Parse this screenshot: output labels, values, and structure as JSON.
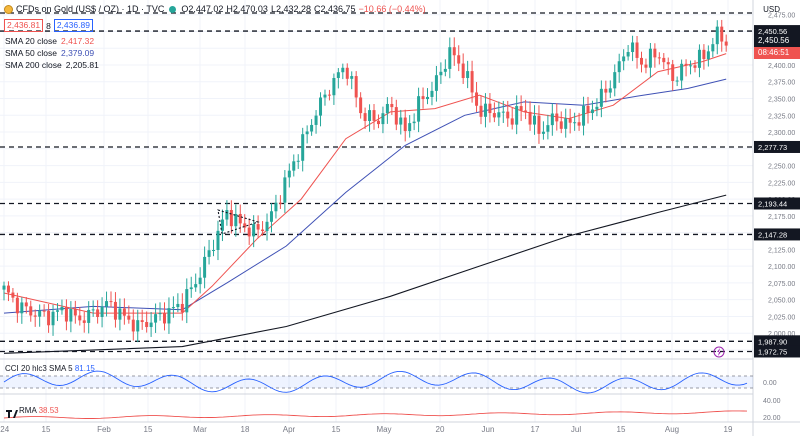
{
  "header": {
    "symbol_title": "CFDs on Gold (US$ / OZ) · 1D · TVC",
    "open": "O2,447.02",
    "high": "H2,470.03",
    "low": "L2,432.28",
    "close": "C2,436.75",
    "change": "−10.66 (−0.44%)",
    "sell_price": "2,436.81",
    "spread": "8",
    "buy_price": "2,436.89",
    "currency": "USD"
  },
  "indicators": {
    "sma20": {
      "label": "SMA 20 close",
      "value": "2,417.32",
      "color": "#ef5350"
    },
    "sma50": {
      "label": "SMA 50 close",
      "value": "2,379.09",
      "color": "#3f51b5"
    },
    "sma200": {
      "label": "SMA 200 close",
      "value": "2,205.81",
      "color": "#131722"
    }
  },
  "price_tags": {
    "last": "2,450.56",
    "countdown": "08:46:51"
  },
  "cci_panel": {
    "label": "CCI 20 hlc3 SMA 5",
    "value": "81.15",
    "ticks": [
      "0.00"
    ]
  },
  "rsi_panel": {
    "label": "RMA",
    "value": "38.53",
    "ticks": [
      "40.00",
      "20.00"
    ]
  },
  "colors": {
    "up": "#26a69a",
    "down": "#ef5350",
    "cci": "#2962ff",
    "rsi": "#ef5350"
  },
  "chart_data": {
    "type": "candlestick",
    "x_tick_labels": [
      "'24",
      "15",
      "Feb",
      "15",
      "Mar",
      "18",
      "Apr",
      "15",
      "May",
      "20",
      "Jun",
      "17",
      "Jul",
      "15",
      "Aug",
      "19"
    ],
    "y_tick_labels": [
      "2,475.00",
      "2,450.00",
      "2,425.00",
      "2,400.00",
      "2,375.00",
      "2,350.00",
      "2,325.00",
      "2,300.00",
      "2,275.00",
      "2,250.00",
      "2,225.00",
      "2,200.00",
      "2,175.00",
      "2,150.00",
      "2,125.00",
      "2,100.00",
      "2,075.00",
      "2,050.00",
      "2,025.00",
      "2,000.00",
      "1,975.00"
    ],
    "y_range": [
      1966,
      2482
    ],
    "horizontal_levels": [
      {
        "value": 2477.5,
        "label": ""
      },
      {
        "value": 2450.56,
        "label": "2,450.56"
      },
      {
        "value": 2277.73,
        "label": "2,277.73"
      },
      {
        "value": 2193.44,
        "label": "2,193.44"
      },
      {
        "value": 2147.28,
        "label": "2,147.28"
      },
      {
        "value": 1987.9,
        "label": "1,987.90"
      },
      {
        "value": 1972.75,
        "label": "1,972.75"
      }
    ],
    "close_path": [
      [
        0,
        2065
      ],
      [
        5,
        2040
      ],
      [
        10,
        2030
      ],
      [
        15,
        2025
      ],
      [
        20,
        2035
      ],
      [
        25,
        2020
      ],
      [
        30,
        2030
      ],
      [
        35,
        2045
      ],
      [
        40,
        2025
      ],
      [
        45,
        2010
      ],
      [
        50,
        2020
      ],
      [
        55,
        2030
      ],
      [
        60,
        2045
      ],
      [
        65,
        2080
      ],
      [
        70,
        2130
      ],
      [
        75,
        2180
      ],
      [
        80,
        2160
      ],
      [
        85,
        2150
      ],
      [
        90,
        2175
      ],
      [
        95,
        2230
      ],
      [
        100,
        2280
      ],
      [
        105,
        2330
      ],
      [
        110,
        2370
      ],
      [
        115,
        2400
      ],
      [
        120,
        2330
      ],
      [
        125,
        2315
      ],
      [
        130,
        2340
      ],
      [
        135,
        2300
      ],
      [
        140,
        2345
      ],
      [
        145,
        2370
      ],
      [
        150,
        2420
      ],
      [
        155,
        2390
      ],
      [
        160,
        2330
      ],
      [
        165,
        2330
      ],
      [
        170,
        2320
      ],
      [
        175,
        2335
      ],
      [
        180,
        2300
      ],
      [
        185,
        2320
      ],
      [
        190,
        2310
      ],
      [
        195,
        2325
      ],
      [
        200,
        2345
      ],
      [
        205,
        2380
      ],
      [
        210,
        2430
      ],
      [
        215,
        2400
      ],
      [
        220,
        2420
      ],
      [
        225,
        2380
      ],
      [
        230,
        2400
      ],
      [
        235,
        2410
      ],
      [
        240,
        2445
      ],
      [
        243,
        2436
      ]
    ],
    "sma20_path": [
      [
        0,
        2060
      ],
      [
        30,
        2030
      ],
      [
        60,
        2030
      ],
      [
        70,
        2070
      ],
      [
        85,
        2140
      ],
      [
        100,
        2200
      ],
      [
        115,
        2290
      ],
      [
        130,
        2330
      ],
      [
        145,
        2335
      ],
      [
        160,
        2355
      ],
      [
        175,
        2330
      ],
      [
        190,
        2320
      ],
      [
        205,
        2340
      ],
      [
        220,
        2390
      ],
      [
        235,
        2405
      ],
      [
        243,
        2417
      ]
    ],
    "sma50_path": [
      [
        0,
        2030
      ],
      [
        30,
        2040
      ],
      [
        60,
        2035
      ],
      [
        75,
        2075
      ],
      [
        95,
        2130
      ],
      [
        115,
        2210
      ],
      [
        135,
        2280
      ],
      [
        155,
        2325
      ],
      [
        175,
        2345
      ],
      [
        195,
        2340
      ],
      [
        215,
        2355
      ],
      [
        230,
        2365
      ],
      [
        243,
        2379
      ]
    ],
    "sma200_path": [
      [
        0,
        1970
      ],
      [
        60,
        1980
      ],
      [
        95,
        2010
      ],
      [
        130,
        2055
      ],
      [
        160,
        2100
      ],
      [
        190,
        2145
      ],
      [
        220,
        2180
      ],
      [
        243,
        2206
      ]
    ]
  }
}
